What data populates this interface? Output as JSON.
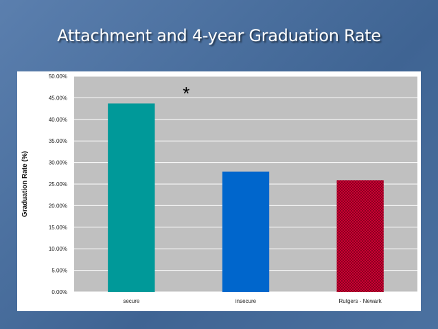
{
  "slide": {
    "title": "Attachment and 4-year Graduation Rate",
    "background_color": "#4a6f9e"
  },
  "chart_data": {
    "type": "bar",
    "title": "",
    "xlabel": "",
    "ylabel": "Graduation Rate (%)",
    "categories": [
      "secure",
      "insecure",
      "Rutgers - Newark"
    ],
    "values": [
      43.7,
      27.9,
      25.9
    ],
    "ylim": [
      0,
      50
    ],
    "yticks": [
      "0.00%",
      "5.00%",
      "10.00%",
      "15.00%",
      "20.00%",
      "25.00%",
      "30.00%",
      "35.00%",
      "40.00%",
      "45.00%",
      "50.00%"
    ],
    "ytick_values": [
      0,
      5,
      10,
      15,
      20,
      25,
      30,
      35,
      40,
      45,
      50
    ],
    "bar_colors": [
      "#009999",
      "#0066cc",
      "#cc0033"
    ],
    "bar_patterns": [
      "solid",
      "solid",
      "checker"
    ],
    "plot_background": "#c0c0c0",
    "grid": true,
    "legend": "none",
    "annotations": [
      {
        "text": "*",
        "near": "secure"
      }
    ]
  }
}
